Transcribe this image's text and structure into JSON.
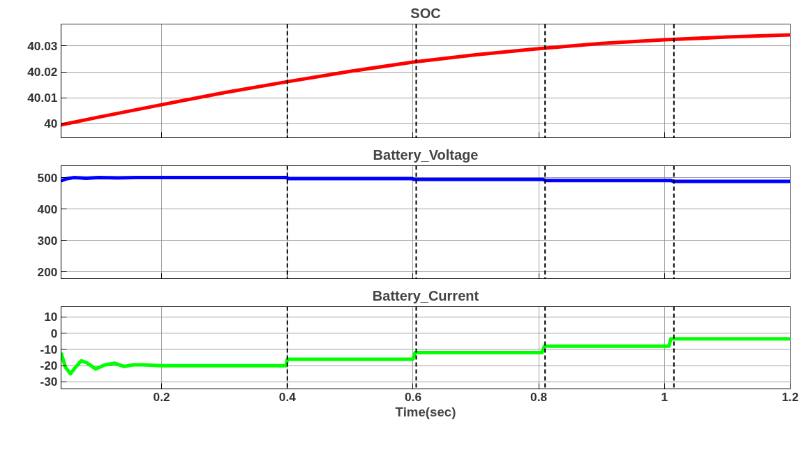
{
  "chart_data": [
    {
      "type": "line",
      "title": "SOC",
      "x": [
        0.04,
        0.1,
        0.2,
        0.3,
        0.4,
        0.5,
        0.6,
        0.7,
        0.8,
        0.9,
        1.0,
        1.1,
        1.2
      ],
      "series": [
        {
          "color": "#ff0000",
          "values": [
            39.9995,
            40.0025,
            40.0073,
            40.012,
            40.0162,
            40.0202,
            40.0238,
            40.0266,
            40.029,
            40.031,
            40.0324,
            40.0335,
            40.0343
          ]
        }
      ],
      "xlim": [
        0.04,
        1.2
      ],
      "xticks": [
        0.2,
        0.4,
        0.6,
        0.8,
        1,
        1.2
      ],
      "ylim": [
        39.9945,
        40.0385
      ],
      "yticks": [
        40,
        40.01,
        40.02,
        40.03
      ],
      "grid": true,
      "tick_labels": "y",
      "ref_lines": [
        {
          "axis": "x",
          "value": 0.4,
          "color": "#000000",
          "line_style": "dashed"
        },
        {
          "axis": "x",
          "value": 0.605,
          "color": "#000000",
          "line_style": "dashed"
        },
        {
          "axis": "x",
          "value": 0.81,
          "color": "#000000",
          "line_style": "dashed"
        },
        {
          "axis": "x",
          "value": 1.015,
          "color": "#000000",
          "line_style": "dashed"
        }
      ]
    },
    {
      "type": "line",
      "title": "Battery_Voltage",
      "x": [
        0.04,
        0.05,
        0.06,
        0.08,
        0.1,
        0.13,
        0.16,
        0.2,
        0.3,
        0.398,
        0.402,
        0.5,
        0.598,
        0.602,
        0.7,
        0.807,
        0.811,
        0.9,
        1.01,
        1.014,
        1.1,
        1.2
      ],
      "series": [
        {
          "color": "#0000ff",
          "values": [
            490,
            497,
            500,
            498,
            500,
            499,
            500,
            500,
            500,
            500,
            497,
            497,
            497,
            494,
            494,
            494,
            491,
            491,
            491,
            488,
            488,
            488
          ]
        }
      ],
      "xlim": [
        0.04,
        1.2
      ],
      "xticks": [
        0.2,
        0.4,
        0.6,
        0.8,
        1,
        1.2
      ],
      "ylim": [
        178,
        538
      ],
      "yticks": [
        200,
        300,
        400,
        500
      ],
      "grid": true,
      "tick_labels": "y",
      "ref_lines": [
        {
          "axis": "x",
          "value": 0.4,
          "color": "#000000",
          "line_style": "dashed"
        },
        {
          "axis": "x",
          "value": 0.605,
          "color": "#000000",
          "line_style": "dashed"
        },
        {
          "axis": "x",
          "value": 0.81,
          "color": "#000000",
          "line_style": "dashed"
        },
        {
          "axis": "x",
          "value": 1.015,
          "color": "#000000",
          "line_style": "dashed"
        }
      ]
    },
    {
      "type": "line",
      "title": "Battery_Current",
      "xlabel": "Time(sec)",
      "x": [
        0.04,
        0.047,
        0.055,
        0.063,
        0.072,
        0.08,
        0.095,
        0.11,
        0.125,
        0.14,
        0.155,
        0.17,
        0.2,
        0.3,
        0.398,
        0.4,
        0.5,
        0.6,
        0.603,
        0.7,
        0.805,
        0.809,
        0.9,
        1.007,
        1.01,
        1.1,
        1.2
      ],
      "series": [
        {
          "color": "#00ff00",
          "values": [
            -12,
            -21,
            -25,
            -21,
            -17,
            -18,
            -22,
            -19.5,
            -18.5,
            -20.5,
            -19.5,
            -19.5,
            -20,
            -20,
            -20,
            -16,
            -16,
            -16,
            -12,
            -12,
            -12,
            -8,
            -8,
            -8,
            -3.5,
            -3.5,
            -3.5
          ]
        }
      ],
      "xlim": [
        0.04,
        1.2
      ],
      "xticks": [
        0.2,
        0.4,
        0.6,
        0.8,
        1,
        1.2
      ],
      "ylim": [
        -34.3,
        16.4
      ],
      "yticks": [
        -30,
        -20,
        -10,
        0,
        10
      ],
      "grid": true,
      "ref_lines": [
        {
          "axis": "x",
          "value": 0.4,
          "color": "#000000",
          "line_style": "dashed"
        },
        {
          "axis": "x",
          "value": 0.605,
          "color": "#000000",
          "line_style": "dashed"
        },
        {
          "axis": "x",
          "value": 0.81,
          "color": "#000000",
          "line_style": "dashed"
        },
        {
          "axis": "x",
          "value": 1.015,
          "color": "#000000",
          "line_style": "dashed"
        }
      ]
    }
  ]
}
